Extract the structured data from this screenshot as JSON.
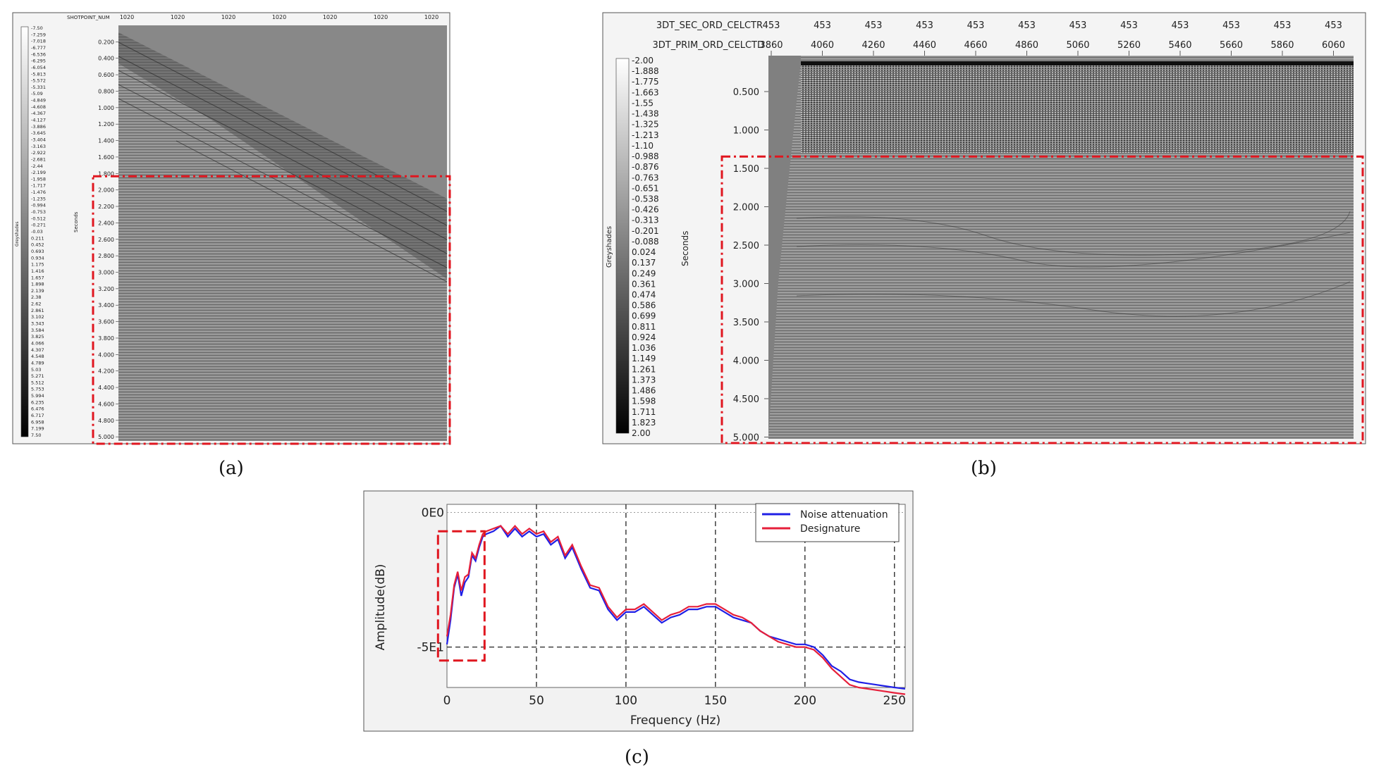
{
  "panels": {
    "a": {
      "caption": "(a)",
      "top_axis_label": "SHOTPOINT_NUM",
      "top_ticks": [
        "1020",
        "1020",
        "1020",
        "1020",
        "1020",
        "1020",
        "1020"
      ],
      "colorbar_label": "Greyshades",
      "colorbar_values": [
        "-7.50",
        "-7.259",
        "-7.018",
        "-6.777",
        "-6.536",
        "-6.295",
        "-6.054",
        "-5.813",
        "-5.572",
        "-5.331",
        "-5.09",
        "-4.849",
        "-4.608",
        "-4.367",
        "-4.127",
        "-3.886",
        "-3.645",
        "-3.404",
        "-3.163",
        "-2.922",
        "-2.681",
        "-2.44",
        "-2.199",
        "-1.958",
        "-1.717",
        "-1.476",
        "-1.235",
        "-0.994",
        "-0.753",
        "-0.512",
        "-0.271",
        "-0.03",
        "0.211",
        "0.452",
        "0.693",
        "0.934",
        "1.175",
        "1.416",
        "1.657",
        "1.898",
        "2.139",
        "2.38",
        "2.62",
        "2.861",
        "3.102",
        "3.343",
        "3.584",
        "3.825",
        "4.066",
        "4.307",
        "4.548",
        "4.789",
        "5.03",
        "5.271",
        "5.512",
        "5.753",
        "5.994",
        "6.235",
        "6.476",
        "6.717",
        "6.958",
        "7.199",
        "7.50"
      ],
      "y_axis_label": "Seconds",
      "y_ticks": [
        "0.200",
        "0.400",
        "0.600",
        "0.800",
        "1.000",
        "1.200",
        "1.400",
        "1.600",
        "1.800",
        "2.000",
        "2.200",
        "2.400",
        "2.600",
        "2.800",
        "3.000",
        "3.200",
        "3.400",
        "3.600",
        "3.800",
        "4.000",
        "4.200",
        "4.400",
        "4.600",
        "4.800",
        "5.000"
      ],
      "highlight_start_seconds": 1.8
    },
    "b": {
      "caption": "(b)",
      "sec_axis_label": "3DT_SEC_ORD_CELCTR",
      "prim_axis_label": "3DT_PRIM_ORD_CELCTD",
      "sec_ticks": [
        "453",
        "453",
        "453",
        "453",
        "453",
        "453",
        "453",
        "453",
        "453",
        "453",
        "453",
        "453"
      ],
      "prim_ticks": [
        "3860",
        "4060",
        "4260",
        "4460",
        "4660",
        "4860",
        "5060",
        "5260",
        "5460",
        "5660",
        "5860",
        "6060"
      ],
      "colorbar_label": "Greyshades",
      "colorbar_values": [
        "-2.00",
        "-1.888",
        "-1.775",
        "-1.663",
        "-1.55",
        "-1.438",
        "-1.325",
        "-1.213",
        "-1.10",
        "-0.988",
        "-0.876",
        "-0.763",
        "-0.651",
        "-0.538",
        "-0.426",
        "-0.313",
        "-0.201",
        "-0.088",
        "0.024",
        "0.137",
        "0.249",
        "0.361",
        "0.474",
        "0.586",
        "0.699",
        "0.811",
        "0.924",
        "1.036",
        "1.149",
        "1.261",
        "1.373",
        "1.486",
        "1.598",
        "1.711",
        "1.823",
        "2.00"
      ],
      "y_axis_label": "Seconds",
      "y_ticks": [
        "0.500",
        "1.000",
        "1.500",
        "2.000",
        "2.500",
        "3.000",
        "3.500",
        "4.000",
        "4.500",
        "5.000"
      ],
      "highlight_start_seconds": 1.3
    },
    "c": {
      "caption": "(c)"
    }
  },
  "chart_data": {
    "type": "line",
    "title": "",
    "xlabel": "Frequency (Hz)",
    "ylabel": "Amplitude(dB)",
    "xlim": [
      0,
      256
    ],
    "ylim": [
      -65,
      3
    ],
    "x_ticks": [
      "0",
      "50",
      "100",
      "150",
      "200",
      "250"
    ],
    "y_tick_labels": [
      {
        "value": 0,
        "label": "0E0"
      },
      {
        "value": -50,
        "label": "-5E1"
      }
    ],
    "grid": "dashed",
    "legend_position": "top-right",
    "highlight_box_x": [
      -5,
      21
    ],
    "highlight_box_y": [
      -55,
      -7
    ],
    "series": [
      {
        "name": "Noise attenuation",
        "color": "#1f1fe6",
        "x": [
          0,
          2,
          4,
          6,
          8,
          10,
          12,
          14,
          16,
          18,
          20,
          22,
          26,
          30,
          34,
          38,
          42,
          46,
          50,
          54,
          58,
          62,
          66,
          70,
          75,
          80,
          85,
          90,
          95,
          100,
          105,
          110,
          115,
          120,
          125,
          130,
          135,
          140,
          145,
          150,
          155,
          160,
          165,
          170,
          175,
          180,
          185,
          190,
          195,
          200,
          205,
          210,
          215,
          220,
          225,
          230,
          235,
          240,
          245,
          250,
          256
        ],
        "values": [
          -49,
          -40,
          -28,
          -23,
          -31,
          -26,
          -24,
          -16,
          -18,
          -13,
          -9,
          -8,
          -7,
          -5,
          -9,
          -6,
          -9,
          -7,
          -9,
          -8,
          -12,
          -10,
          -17,
          -13,
          -21,
          -28,
          -29,
          -36,
          -40,
          -37,
          -37,
          -35,
          -38,
          -41,
          -39,
          -38,
          -36,
          -36,
          -35,
          -35,
          -37,
          -39,
          -40,
          -41,
          -44,
          -46,
          -47,
          -48,
          -49,
          -49,
          -50,
          -53,
          -57,
          -59,
          -62,
          -63,
          -63.5,
          -64,
          -64.5,
          -65,
          -65.5
        ]
      },
      {
        "name": "Designature",
        "color": "#e61f3a",
        "x": [
          0,
          2,
          4,
          6,
          8,
          10,
          12,
          14,
          16,
          18,
          20,
          22,
          26,
          30,
          34,
          38,
          42,
          46,
          50,
          54,
          58,
          62,
          66,
          70,
          75,
          80,
          85,
          90,
          95,
          100,
          105,
          110,
          115,
          120,
          125,
          130,
          135,
          140,
          145,
          150,
          155,
          160,
          165,
          170,
          175,
          180,
          185,
          190,
          195,
          200,
          205,
          210,
          215,
          220,
          225,
          230,
          235,
          240,
          245,
          250,
          256
        ],
        "values": [
          -46,
          -38,
          -27,
          -22,
          -29,
          -24,
          -23,
          -15,
          -17,
          -12,
          -8,
          -7,
          -6,
          -5,
          -8,
          -5,
          -8,
          -6,
          -8,
          -7,
          -11,
          -9,
          -16,
          -12,
          -20,
          -27,
          -28,
          -35,
          -39,
          -36,
          -36,
          -34,
          -37,
          -40,
          -38,
          -37,
          -35,
          -35,
          -34,
          -34,
          -36,
          -38,
          -39,
          -41,
          -44,
          -46,
          -48,
          -49,
          -50,
          -50,
          -51,
          -54,
          -58,
          -61,
          -64,
          -65,
          -65.5,
          -66,
          -66.5,
          -67,
          -67.5
        ]
      }
    ]
  }
}
